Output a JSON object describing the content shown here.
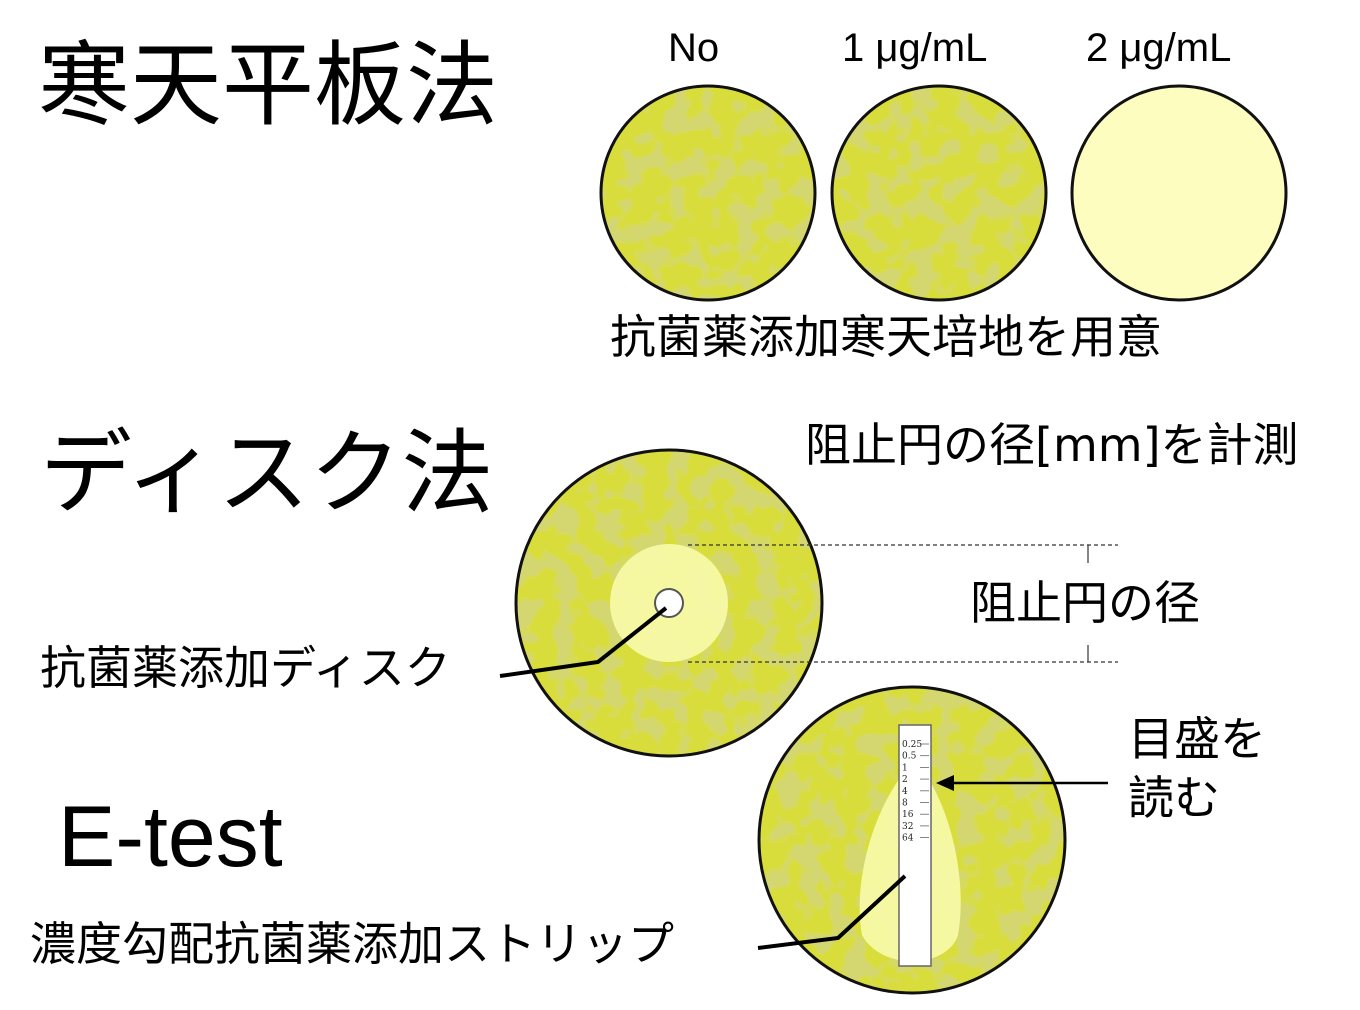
{
  "agar": {
    "title": "寒天平板法",
    "concentrations": [
      "No",
      "1 μg/mL",
      "2 μg/mL"
    ],
    "caption": "抗菌薬添加寒天培地を用意"
  },
  "disk": {
    "title": "ディスク法",
    "measure_caption": "阻止円の径[mm]を計測",
    "diameter_label": "阻止円の径",
    "disk_label": "抗菌薬添加ディスク"
  },
  "etest": {
    "title": "E-test",
    "scale_labels": [
      "0.25",
      "0.5",
      "1",
      "2",
      "4",
      "8",
      "16",
      "32",
      "64"
    ],
    "read_label_line1": "目盛を",
    "read_label_line2": "読む",
    "strip_label": "濃度勾配抗菌薬添加ストリップ"
  },
  "colors": {
    "agar_growth": "#d9dd3a",
    "agar_growth_dark": "#b9bd30",
    "agar_clear": "#fdfdc0",
    "inhibition_zone": "#f8f9a6"
  }
}
